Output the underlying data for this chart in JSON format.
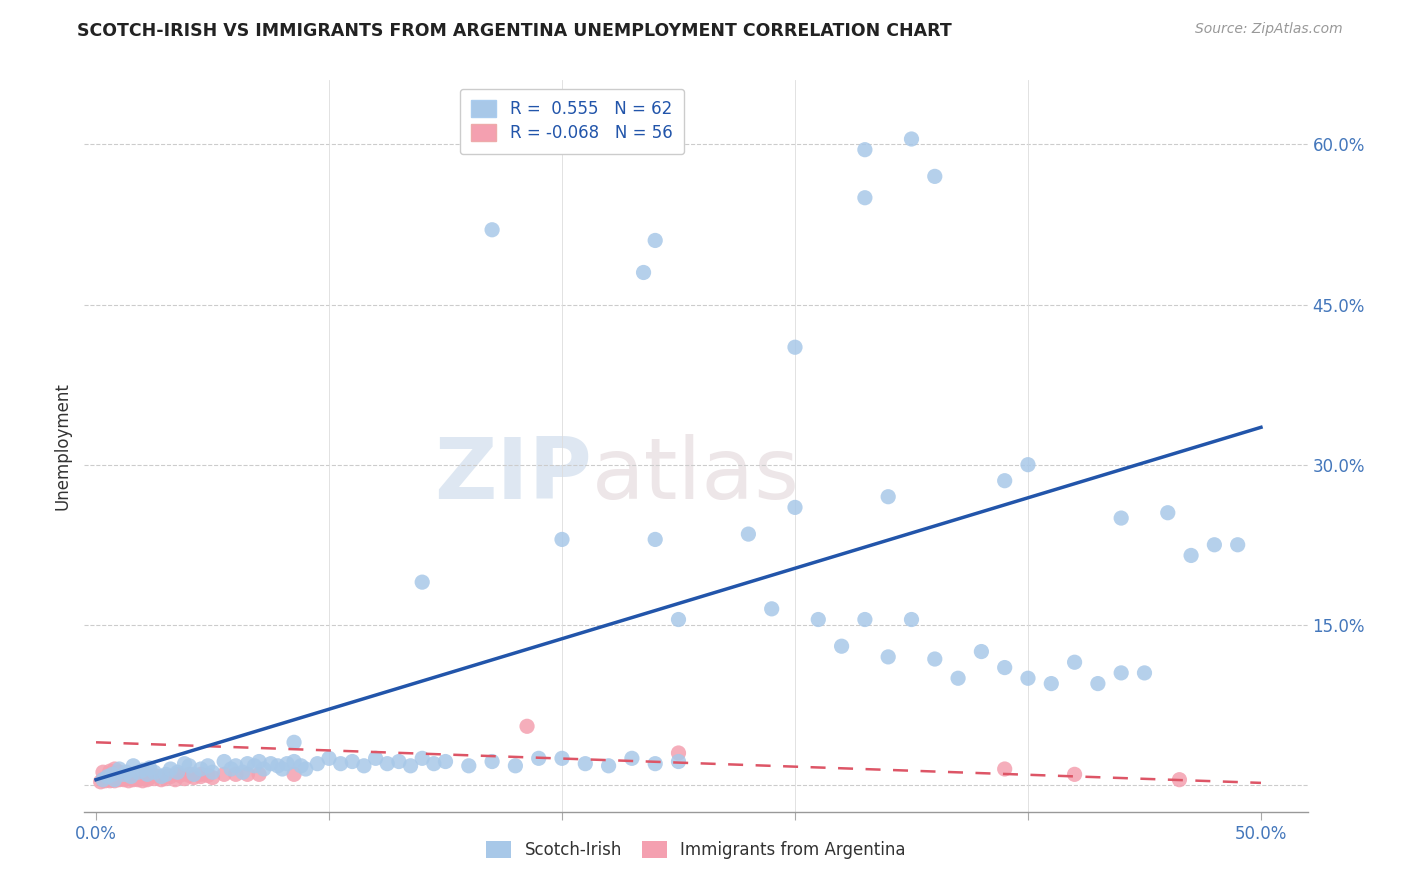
{
  "title": "SCOTCH-IRISH VS IMMIGRANTS FROM ARGENTINA UNEMPLOYMENT CORRELATION CHART",
  "source": "Source: ZipAtlas.com",
  "ylabel": "Unemployment",
  "y_ticks": [
    0.0,
    0.15,
    0.3,
    0.45,
    0.6
  ],
  "y_tick_labels": [
    "",
    "15.0%",
    "30.0%",
    "45.0%",
    "60.0%"
  ],
  "x_ticks": [
    0.0,
    0.1,
    0.2,
    0.3,
    0.4,
    0.5
  ],
  "x_tick_labels": [
    "0.0%",
    "",
    "",
    "",
    "",
    "50.0%"
  ],
  "xlim": [
    -0.005,
    0.52
  ],
  "ylim": [
    -0.025,
    0.66
  ],
  "blue_color": "#a8c8e8",
  "pink_color": "#f4a0b0",
  "blue_line_color": "#2255aa",
  "pink_line_color": "#dd5566",
  "watermark_zip": "ZIP",
  "watermark_atlas": "atlas",
  "scotch_irish_points": [
    [
      0.003,
      0.005
    ],
    [
      0.005,
      0.008
    ],
    [
      0.007,
      0.01
    ],
    [
      0.008,
      0.005
    ],
    [
      0.01,
      0.015
    ],
    [
      0.012,
      0.01
    ],
    [
      0.013,
      0.012
    ],
    [
      0.015,
      0.008
    ],
    [
      0.016,
      0.018
    ],
    [
      0.018,
      0.012
    ],
    [
      0.02,
      0.014
    ],
    [
      0.022,
      0.01
    ],
    [
      0.023,
      0.016
    ],
    [
      0.025,
      0.012
    ],
    [
      0.028,
      0.008
    ],
    [
      0.03,
      0.01
    ],
    [
      0.032,
      0.015
    ],
    [
      0.035,
      0.012
    ],
    [
      0.038,
      0.02
    ],
    [
      0.04,
      0.018
    ],
    [
      0.042,
      0.01
    ],
    [
      0.045,
      0.015
    ],
    [
      0.048,
      0.018
    ],
    [
      0.05,
      0.012
    ],
    [
      0.055,
      0.022
    ],
    [
      0.058,
      0.015
    ],
    [
      0.06,
      0.018
    ],
    [
      0.063,
      0.012
    ],
    [
      0.065,
      0.02
    ],
    [
      0.068,
      0.018
    ],
    [
      0.07,
      0.022
    ],
    [
      0.072,
      0.015
    ],
    [
      0.075,
      0.02
    ],
    [
      0.078,
      0.018
    ],
    [
      0.08,
      0.015
    ],
    [
      0.082,
      0.02
    ],
    [
      0.085,
      0.022
    ],
    [
      0.088,
      0.018
    ],
    [
      0.09,
      0.015
    ],
    [
      0.095,
      0.02
    ],
    [
      0.1,
      0.025
    ],
    [
      0.105,
      0.02
    ],
    [
      0.11,
      0.022
    ],
    [
      0.115,
      0.018
    ],
    [
      0.12,
      0.025
    ],
    [
      0.125,
      0.02
    ],
    [
      0.13,
      0.022
    ],
    [
      0.135,
      0.018
    ],
    [
      0.14,
      0.025
    ],
    [
      0.145,
      0.02
    ],
    [
      0.15,
      0.022
    ],
    [
      0.16,
      0.018
    ],
    [
      0.17,
      0.022
    ],
    [
      0.18,
      0.018
    ],
    [
      0.19,
      0.025
    ],
    [
      0.2,
      0.025
    ],
    [
      0.21,
      0.02
    ],
    [
      0.22,
      0.018
    ],
    [
      0.23,
      0.025
    ],
    [
      0.24,
      0.02
    ],
    [
      0.25,
      0.022
    ],
    [
      0.085,
      0.04
    ],
    [
      0.14,
      0.19
    ],
    [
      0.2,
      0.23
    ],
    [
      0.24,
      0.23
    ],
    [
      0.25,
      0.155
    ],
    [
      0.28,
      0.235
    ],
    [
      0.29,
      0.165
    ],
    [
      0.3,
      0.26
    ],
    [
      0.31,
      0.155
    ],
    [
      0.32,
      0.13
    ],
    [
      0.33,
      0.155
    ],
    [
      0.34,
      0.12
    ],
    [
      0.35,
      0.155
    ],
    [
      0.36,
      0.118
    ],
    [
      0.37,
      0.1
    ],
    [
      0.38,
      0.125
    ],
    [
      0.39,
      0.11
    ],
    [
      0.4,
      0.1
    ],
    [
      0.41,
      0.095
    ],
    [
      0.42,
      0.115
    ],
    [
      0.43,
      0.095
    ],
    [
      0.44,
      0.105
    ],
    [
      0.45,
      0.105
    ],
    [
      0.34,
      0.27
    ],
    [
      0.39,
      0.285
    ],
    [
      0.4,
      0.3
    ],
    [
      0.44,
      0.25
    ],
    [
      0.46,
      0.255
    ],
    [
      0.47,
      0.215
    ],
    [
      0.48,
      0.225
    ],
    [
      0.49,
      0.225
    ],
    [
      0.3,
      0.41
    ],
    [
      0.17,
      0.52
    ],
    [
      0.33,
      0.55
    ],
    [
      0.33,
      0.595
    ],
    [
      0.35,
      0.605
    ],
    [
      0.36,
      0.57
    ],
    [
      0.235,
      0.48
    ],
    [
      0.24,
      0.51
    ]
  ],
  "argentina_points": [
    [
      0.002,
      0.003
    ],
    [
      0.003,
      0.005
    ],
    [
      0.004,
      0.004
    ],
    [
      0.005,
      0.006
    ],
    [
      0.006,
      0.004
    ],
    [
      0.007,
      0.005
    ],
    [
      0.008,
      0.004
    ],
    [
      0.009,
      0.006
    ],
    [
      0.01,
      0.005
    ],
    [
      0.011,
      0.007
    ],
    [
      0.012,
      0.005
    ],
    [
      0.013,
      0.006
    ],
    [
      0.014,
      0.004
    ],
    [
      0.015,
      0.006
    ],
    [
      0.016,
      0.005
    ],
    [
      0.017,
      0.007
    ],
    [
      0.018,
      0.005
    ],
    [
      0.019,
      0.006
    ],
    [
      0.02,
      0.004
    ],
    [
      0.021,
      0.006
    ],
    [
      0.022,
      0.005
    ],
    [
      0.023,
      0.007
    ],
    [
      0.025,
      0.006
    ],
    [
      0.028,
      0.005
    ],
    [
      0.03,
      0.006
    ],
    [
      0.032,
      0.008
    ],
    [
      0.034,
      0.005
    ],
    [
      0.036,
      0.009
    ],
    [
      0.038,
      0.006
    ],
    [
      0.04,
      0.01
    ],
    [
      0.042,
      0.007
    ],
    [
      0.045,
      0.008
    ],
    [
      0.048,
      0.009
    ],
    [
      0.05,
      0.007
    ],
    [
      0.055,
      0.01
    ],
    [
      0.003,
      0.012
    ],
    [
      0.006,
      0.013
    ],
    [
      0.008,
      0.015
    ],
    [
      0.01,
      0.012
    ],
    [
      0.015,
      0.01
    ],
    [
      0.018,
      0.008
    ],
    [
      0.02,
      0.011
    ],
    [
      0.025,
      0.009
    ],
    [
      0.03,
      0.008
    ],
    [
      0.035,
      0.01
    ],
    [
      0.04,
      0.009
    ],
    [
      0.045,
      0.01
    ],
    [
      0.06,
      0.01
    ],
    [
      0.065,
      0.01
    ],
    [
      0.07,
      0.01
    ],
    [
      0.085,
      0.01
    ],
    [
      0.185,
      0.055
    ],
    [
      0.25,
      0.03
    ],
    [
      0.39,
      0.015
    ],
    [
      0.42,
      0.01
    ],
    [
      0.465,
      0.005
    ]
  ],
  "blue_trend_x": [
    0.0,
    0.5
  ],
  "blue_trend_y": [
    0.005,
    0.335
  ],
  "pink_trend_x": [
    0.0,
    0.5
  ],
  "pink_trend_y": [
    0.04,
    0.002
  ],
  "marker_size": 120
}
